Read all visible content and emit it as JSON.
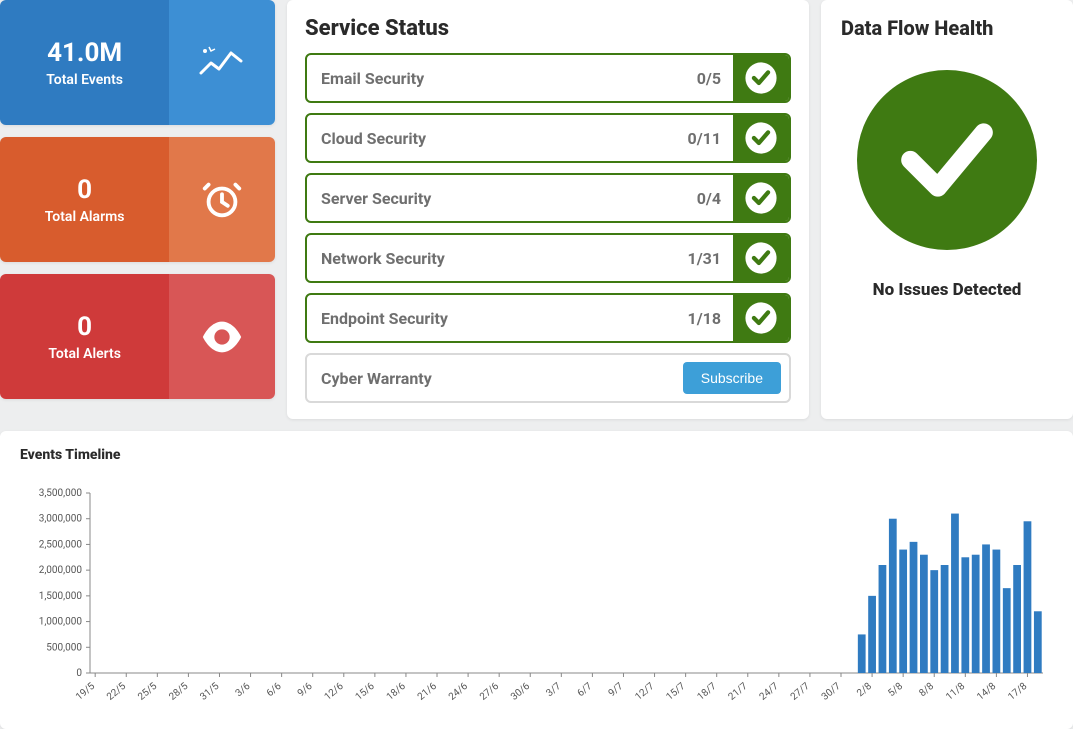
{
  "stats": [
    {
      "value": "41.0M",
      "label": "Total Events",
      "left_bg": "#2f7bc1",
      "right_bg": "#3d8fd4",
      "icon": "sparkline"
    },
    {
      "value": "0",
      "label": "Total Alarms",
      "left_bg": "#d85c2d",
      "right_bg": "#e1784a",
      "icon": "alarm"
    },
    {
      "value": "0",
      "label": "Total Alerts",
      "left_bg": "#cf3a3a",
      "right_bg": "#d85656",
      "icon": "eye"
    }
  ],
  "service_status": {
    "title": "Service Status",
    "rows": [
      {
        "name": "Email Security",
        "count": "0/5",
        "ok": true
      },
      {
        "name": "Cloud Security",
        "count": "0/11",
        "ok": true
      },
      {
        "name": "Server Security",
        "count": "0/4",
        "ok": true
      },
      {
        "name": "Network Security",
        "count": "1/31",
        "ok": true
      },
      {
        "name": "Endpoint Security",
        "count": "1/18",
        "ok": true
      }
    ],
    "subscribe_row": {
      "name": "Cyber Warranty",
      "button": "Subscribe"
    },
    "ok_color": "#3f7a12"
  },
  "data_flow": {
    "title": "Data Flow Health",
    "status": "No Issues Detected",
    "color": "#3f7a12"
  },
  "timeline": {
    "title": "Events Timeline",
    "type": "bar",
    "ylim": [
      0,
      3500000
    ],
    "ytick_step": 500000,
    "yticks": [
      "0",
      "500,000",
      "1,000,000",
      "1,500,000",
      "2,000,000",
      "2,500,000",
      "3,000,000",
      "3,500,000"
    ],
    "bar_color": "#2f7bc1",
    "axis_color": "#888",
    "tick_font_size": 10,
    "background_color": "#ffffff",
    "x_labels": [
      "19/5",
      "22/5",
      "25/5",
      "28/5",
      "31/5",
      "3/6",
      "6/6",
      "9/6",
      "12/6",
      "15/6",
      "18/6",
      "21/6",
      "24/6",
      "27/6",
      "30/6",
      "3/7",
      "6/7",
      "9/7",
      "12/7",
      "15/7",
      "18/7",
      "21/7",
      "24/7",
      "27/7",
      "30/7",
      "2/8",
      "5/8",
      "8/8",
      "11/8",
      "14/8",
      "17/8"
    ],
    "bars": [
      {
        "x": "1/8",
        "v": 750000
      },
      {
        "x": "2/8",
        "v": 1500000
      },
      {
        "x": "3/8",
        "v": 2100000
      },
      {
        "x": "4/8",
        "v": 3000000
      },
      {
        "x": "5/8",
        "v": 2400000
      },
      {
        "x": "6/8",
        "v": 2550000
      },
      {
        "x": "7/8",
        "v": 2300000
      },
      {
        "x": "8/8",
        "v": 2000000
      },
      {
        "x": "9/8",
        "v": 2100000
      },
      {
        "x": "10/8",
        "v": 3100000
      },
      {
        "x": "11/8",
        "v": 2250000
      },
      {
        "x": "12/8",
        "v": 2300000
      },
      {
        "x": "13/8",
        "v": 2500000
      },
      {
        "x": "14/8",
        "v": 2400000
      },
      {
        "x": "15/8",
        "v": 1650000
      },
      {
        "x": "16/8",
        "v": 2100000
      },
      {
        "x": "17/8",
        "v": 2950000
      },
      {
        "x": "18/8",
        "v": 1200000
      }
    ]
  }
}
